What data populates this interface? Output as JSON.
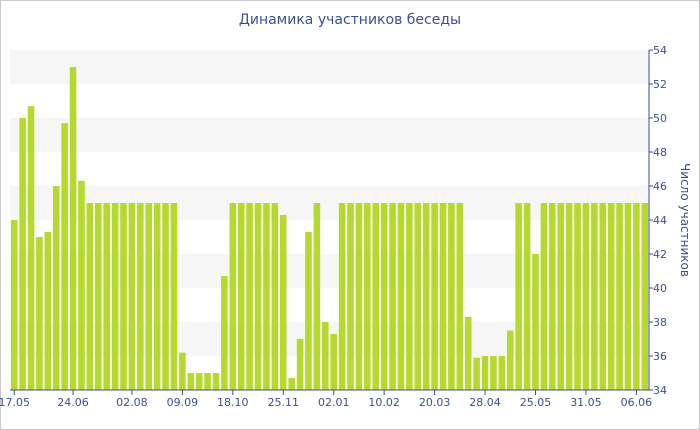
{
  "chart_data": {
    "type": "bar",
    "title": "Динамика участников беседы",
    "ylabel": "Число участников",
    "xlabel": "",
    "ylim": [
      34,
      54
    ],
    "yticks": [
      34,
      36,
      38,
      40,
      42,
      44,
      46,
      48,
      50,
      52,
      54
    ],
    "y_axis_side": "right",
    "grid": "alternating horizontal bands",
    "bar_color": "#b5d92c",
    "band_color": "#f6f6f6",
    "text_color": "#3b4f8f",
    "x_tick_labels": [
      {
        "label": "17.05",
        "index": 0
      },
      {
        "label": "24.06",
        "index": 7
      },
      {
        "label": "02.08",
        "index": 14
      },
      {
        "label": "09.09",
        "index": 20
      },
      {
        "label": "18.10",
        "index": 26
      },
      {
        "label": "25.11",
        "index": 32
      },
      {
        "label": "02.01",
        "index": 38
      },
      {
        "label": "10.02",
        "index": 44
      },
      {
        "label": "20.03",
        "index": 50
      },
      {
        "label": "28.04",
        "index": 56
      },
      {
        "label": "25.05",
        "index": 62
      },
      {
        "label": "31.05",
        "index": 68
      },
      {
        "label": "06.06",
        "index": 74
      }
    ],
    "values": [
      44,
      50,
      50.7,
      43,
      43.3,
      46,
      49.7,
      53,
      46.3,
      45,
      45,
      45,
      45,
      45,
      45,
      45,
      45,
      45,
      45,
      45,
      36.2,
      35,
      35,
      35,
      35,
      40.7,
      45,
      45,
      45,
      45,
      45,
      45,
      44.3,
      34.7,
      37,
      43.3,
      45,
      38,
      37.3,
      45,
      45,
      45,
      45,
      45,
      45,
      45,
      45,
      45,
      45,
      45,
      45,
      45,
      45,
      45,
      38.3,
      35.9,
      36,
      36,
      36,
      37.5,
      45,
      45,
      42,
      45,
      45,
      45,
      45,
      45,
      45,
      45,
      45,
      45,
      45,
      45,
      45,
      45
    ]
  }
}
